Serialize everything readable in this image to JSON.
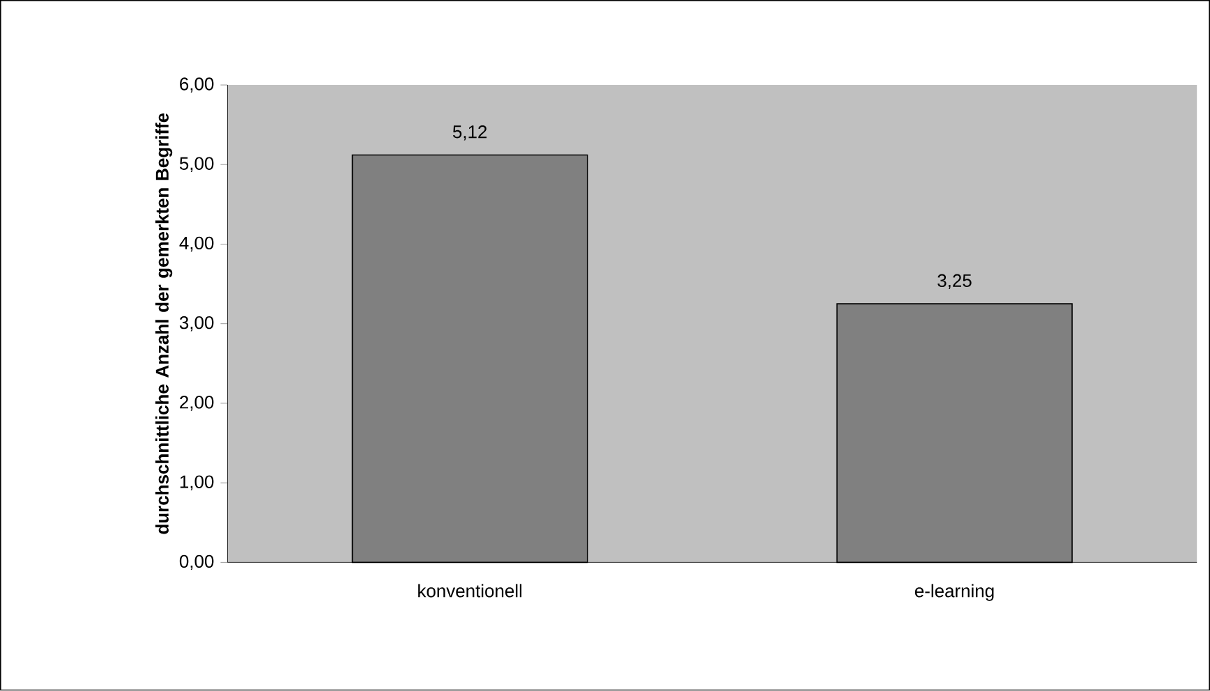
{
  "chart_data": {
    "type": "bar",
    "ylabel": "durchschnittliche Anzahl der gemerkten Begriffe",
    "categories": [
      "konventionell",
      "e-learning"
    ],
    "values": [
      5.12,
      3.25
    ],
    "value_labels": [
      "5,12",
      "3,25"
    ],
    "color": "#808080",
    "ylim": [
      0,
      6
    ],
    "yticks": [
      {
        "value": 0,
        "label": "0,00"
      },
      {
        "value": 1,
        "label": "1,00"
      },
      {
        "value": 2,
        "label": "2,00"
      },
      {
        "value": 3,
        "label": "3,00"
      },
      {
        "value": 4,
        "label": "4,00"
      },
      {
        "value": 5,
        "label": "5,00"
      },
      {
        "value": 6,
        "label": "6,00"
      }
    ]
  }
}
